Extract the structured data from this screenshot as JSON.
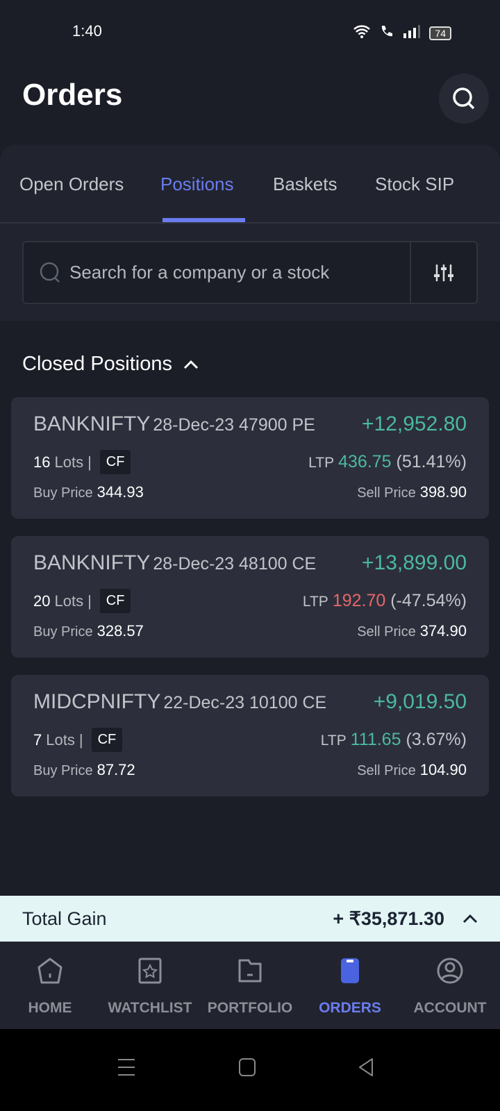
{
  "status": {
    "time": "1:40",
    "battery": "74"
  },
  "header": {
    "title": "Orders"
  },
  "tabs": [
    {
      "label": "Open Orders",
      "active": false
    },
    {
      "label": "Positions",
      "active": true
    },
    {
      "label": "Baskets",
      "active": false
    },
    {
      "label": "Stock SIP",
      "active": false
    }
  ],
  "search": {
    "placeholder": "Search for a company or a stock"
  },
  "section": {
    "title": "Closed Positions"
  },
  "positions": [
    {
      "symbol": "BANKNIFTY",
      "contract": "28-Dec-23 47900 PE",
      "pnl": "+12,952.80",
      "lots": "16",
      "lots_label": "Lots",
      "product": "CF",
      "ltp_label": "LTP",
      "ltp": "436.75",
      "change": "(51.41%)",
      "ltp_trend": "up",
      "buy_label": "Buy Price",
      "buy_price": "344.93",
      "sell_label": "Sell Price",
      "sell_price": "398.90"
    },
    {
      "symbol": "BANKNIFTY",
      "contract": "28-Dec-23 48100 CE",
      "pnl": "+13,899.00",
      "lots": "20",
      "lots_label": "Lots",
      "product": "CF",
      "ltp_label": "LTP",
      "ltp": "192.70",
      "change": "(-47.54%)",
      "ltp_trend": "down",
      "buy_label": "Buy Price",
      "buy_price": "328.57",
      "sell_label": "Sell Price",
      "sell_price": "374.90"
    },
    {
      "symbol": "MIDCPNIFTY",
      "contract": "22-Dec-23 10100 CE",
      "pnl": "+9,019.50",
      "lots": "7",
      "lots_label": "Lots",
      "product": "CF",
      "ltp_label": "LTP",
      "ltp": "111.65",
      "change": "(3.67%)",
      "ltp_trend": "up",
      "buy_label": "Buy Price",
      "buy_price": "87.72",
      "sell_label": "Sell Price",
      "sell_price": "104.90"
    }
  ],
  "total": {
    "label": "Total Gain",
    "value": "+ ₹35,871.30"
  },
  "nav": [
    {
      "label": "HOME",
      "icon": "home-icon"
    },
    {
      "label": "WATCHLIST",
      "icon": "watchlist-icon"
    },
    {
      "label": "PORTFOLIO",
      "icon": "portfolio-icon"
    },
    {
      "label": "ORDERS",
      "icon": "orders-icon",
      "active": true
    },
    {
      "label": "ACCOUNT",
      "icon": "account-icon"
    }
  ],
  "colors": {
    "background": "#1b1e27",
    "card": "#2c2f3b",
    "accent": "#6b7cf0",
    "gain": "#4cb8a0",
    "loss": "#e5666a",
    "total_bar": "#e3f6f5"
  }
}
